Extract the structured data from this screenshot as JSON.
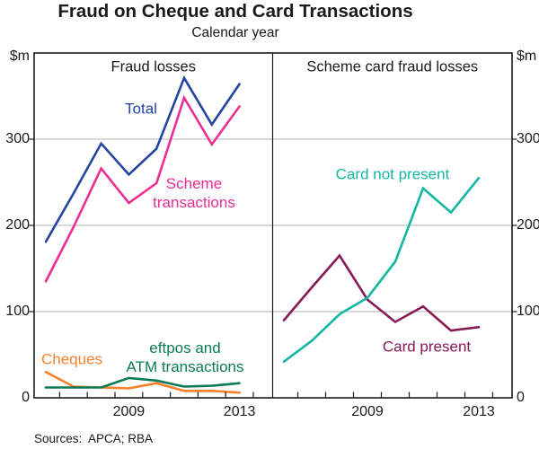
{
  "title": "Fraud on Cheque and Card Transactions",
  "subtitle": "Calendar year",
  "footer": {
    "sources": "Sources:  APCA; RBA"
  },
  "axis": {
    "unit_label": "$m",
    "y_ticks": [
      0,
      100,
      200,
      300
    ],
    "ylim": [
      0,
      400
    ],
    "x_tick_labels": [
      {
        "label": "2009",
        "year": 2009
      },
      {
        "label": "2013",
        "year": 2013
      }
    ]
  },
  "colors": {
    "total": "#2543a0",
    "scheme_transactions": "#ec2d92",
    "cheques": "#f5812d",
    "eftpos_atm": "#0d7a56",
    "card_not_present": "#13b6a2",
    "card_present": "#871b56",
    "gridline": "#b3b3b3",
    "frame": "#1a1a1a"
  },
  "chart_data": {
    "type": "line",
    "x": [
      2006,
      2007,
      2008,
      2009,
      2010,
      2011,
      2012,
      2013
    ],
    "xlabel": "",
    "ylabel": "$m",
    "ylim": [
      0,
      400
    ],
    "grid": "horizontal",
    "legend_position": "inline-annotations",
    "panels": [
      {
        "title": "Fraud losses",
        "series": [
          {
            "name": "Total",
            "label": "Total",
            "color": "#2543a0",
            "values": [
              181,
              237,
              295,
              259,
              289,
              371,
              317,
              364
            ]
          },
          {
            "name": "Scheme transactions",
            "label": "Scheme\ntransactions",
            "color": "#ec2d92",
            "values": [
              135,
              198,
              266,
              226,
              249,
              348,
              294,
              338
            ]
          },
          {
            "name": "Cheques",
            "label": "Cheques",
            "color": "#f5812d",
            "values": [
              30,
              13,
              12,
              11,
              17,
              8,
              8,
              6
            ]
          },
          {
            "name": "eftpos and ATM transactions",
            "label": "eftpos and\nATM transactions",
            "color": "#0d7a56",
            "values": [
              12,
              12,
              12,
              23,
              20,
              13,
              14,
              17
            ]
          }
        ]
      },
      {
        "title": "Scheme card fraud losses",
        "series": [
          {
            "name": "Card not present",
            "label": "Card not present",
            "color": "#13b6a2",
            "values": [
              42,
              66,
              97,
              116,
              158,
              243,
              215,
              255
            ]
          },
          {
            "name": "Card present",
            "label": "Card present",
            "color": "#871b56",
            "values": [
              90,
              128,
              165,
              114,
              88,
              106,
              78,
              82
            ]
          }
        ]
      }
    ]
  }
}
